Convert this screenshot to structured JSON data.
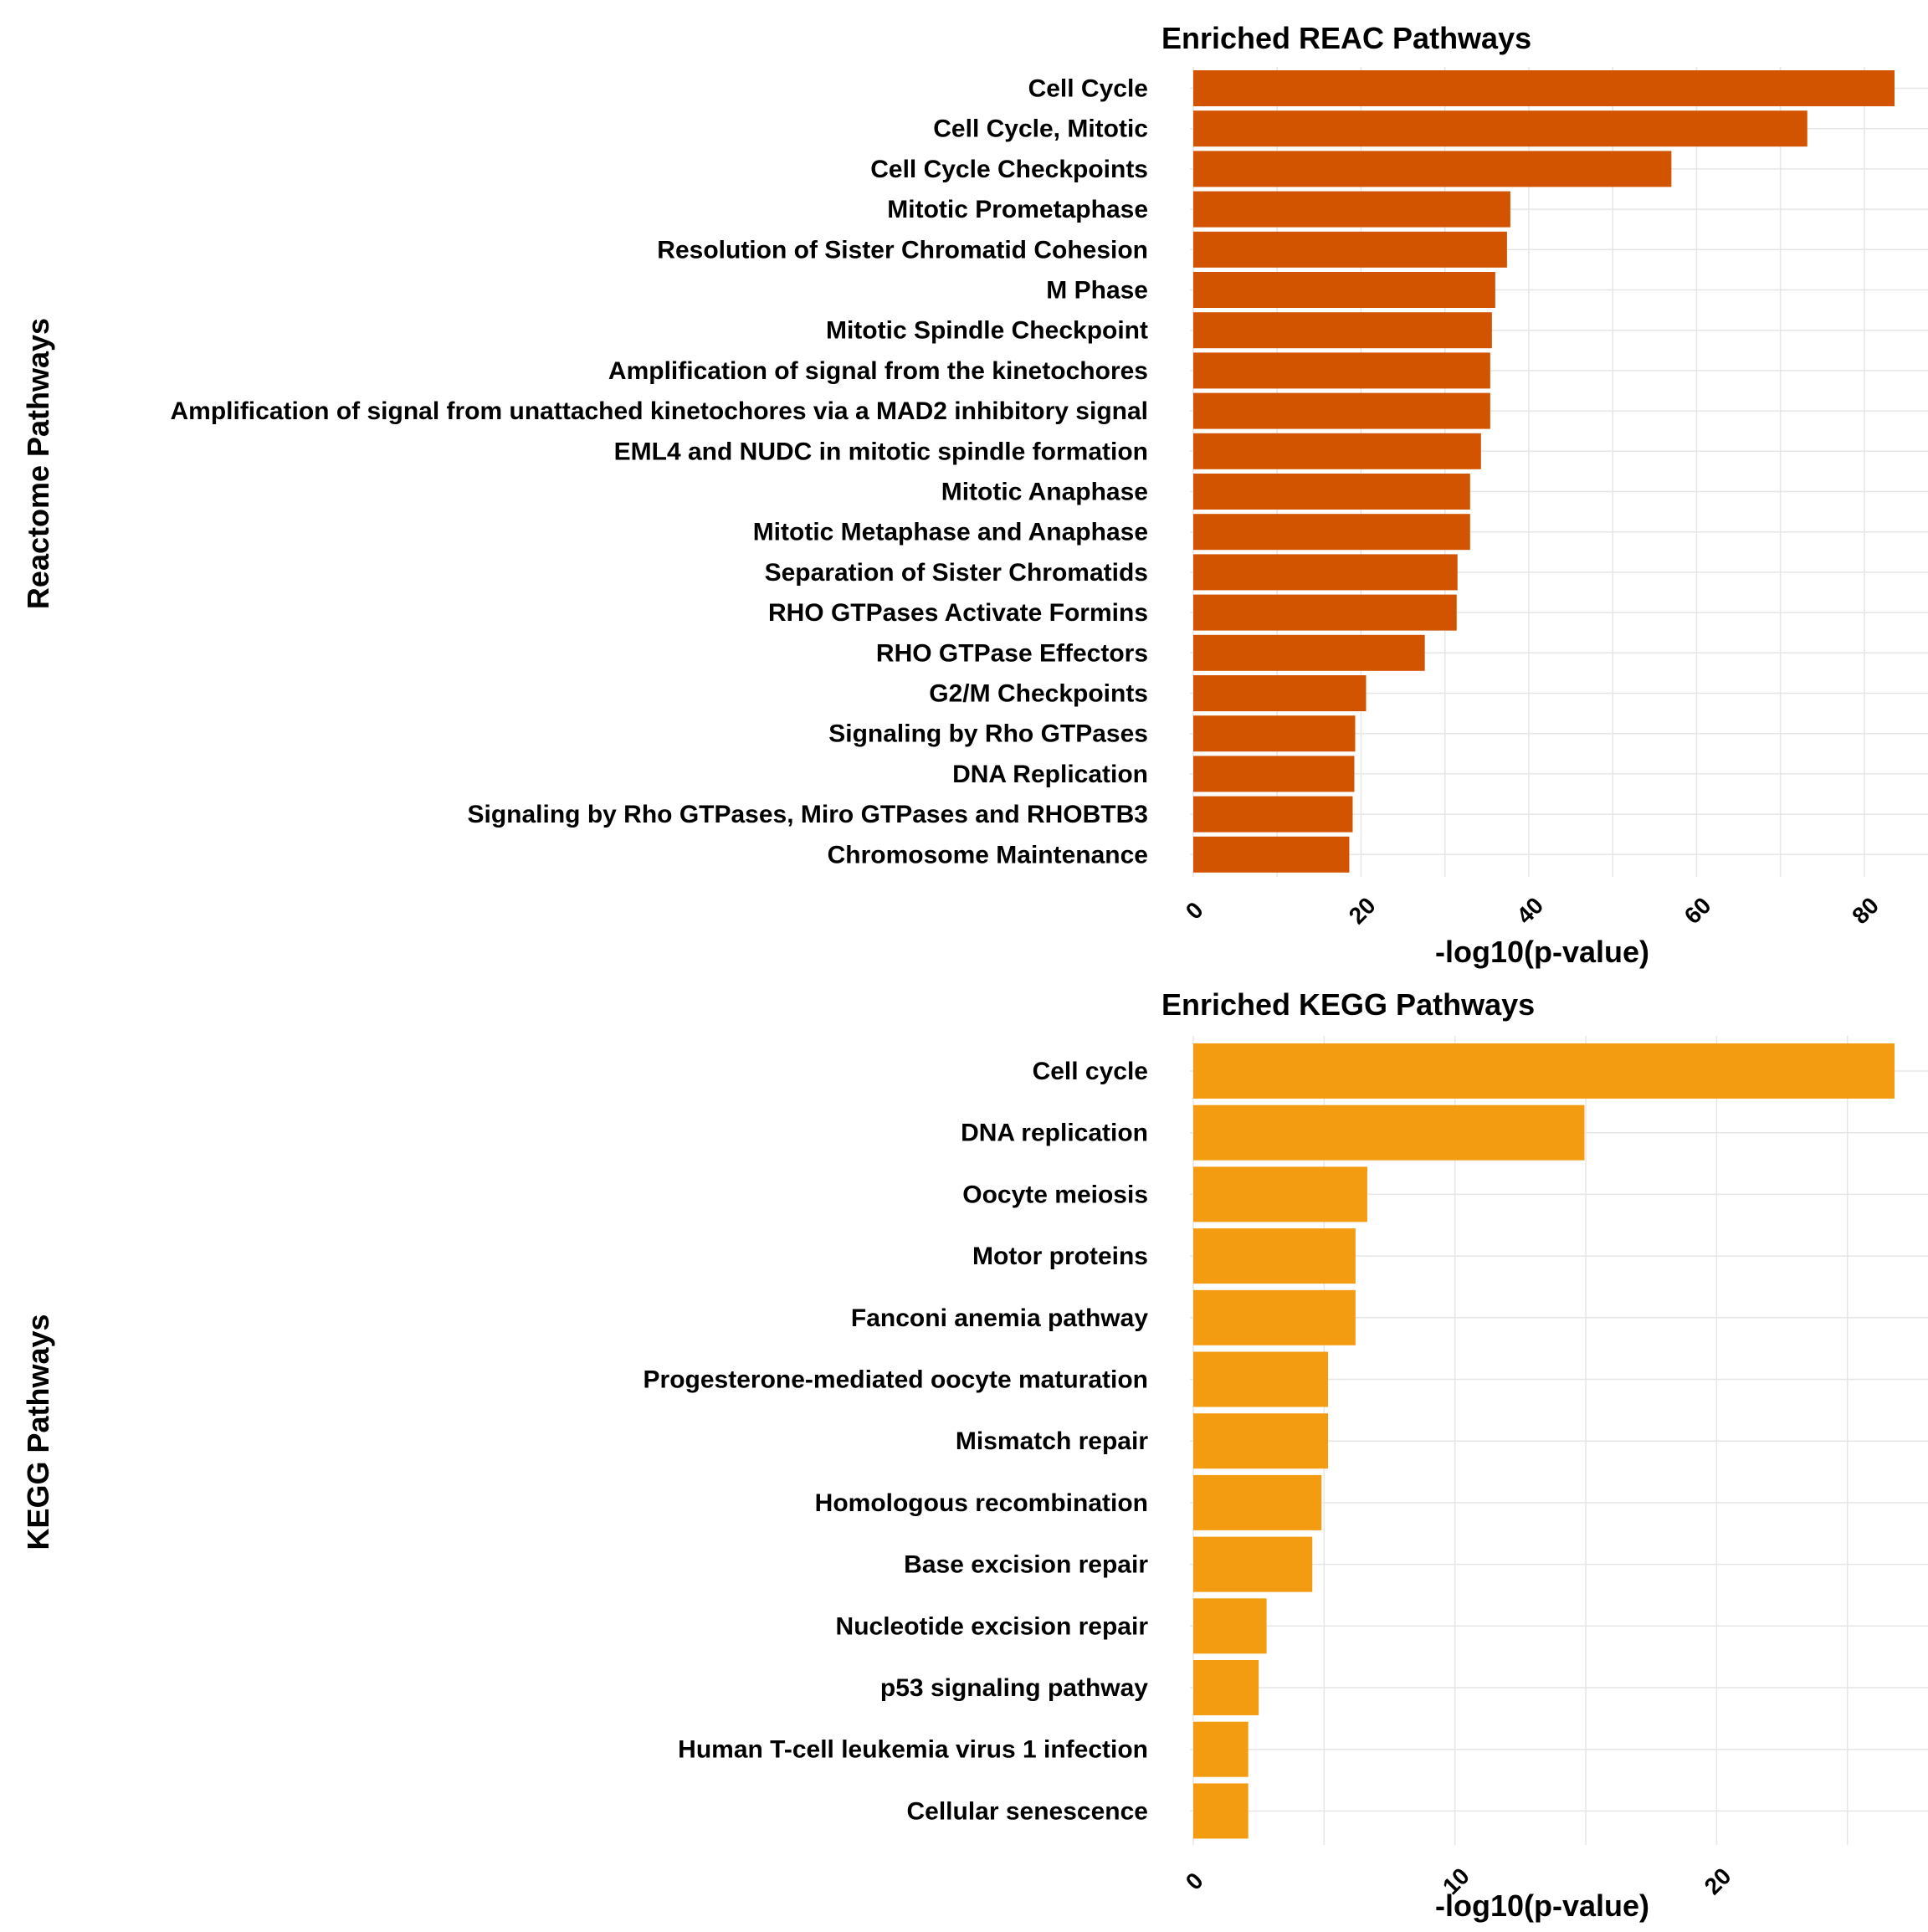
{
  "chart_data": [
    {
      "type": "bar",
      "orientation": "horizontal",
      "title": "Enriched REAC Pathways",
      "xlabel": "-log10(p-value)",
      "ylabel": "Reactome Pathways",
      "color": "#D35400",
      "xlim": [
        0,
        88
      ],
      "ticks": [
        0,
        20,
        40,
        60,
        80
      ],
      "tick_labels": [
        "0",
        "20",
        "40",
        "60",
        "80"
      ],
      "grid": true,
      "categories": [
        "Cell Cycle",
        "Cell Cycle, Mitotic",
        "Cell Cycle Checkpoints",
        "Mitotic Prometaphase",
        "Resolution of Sister Chromatid Cohesion",
        "M Phase",
        "Mitotic Spindle Checkpoint",
        "Amplification of signal from the kinetochores",
        "Amplification  of signal from unattached  kinetochores via a MAD2  inhibitory signal",
        "EML4 and NUDC in mitotic spindle formation",
        "Mitotic Anaphase",
        "Mitotic Metaphase and Anaphase",
        "Separation of Sister Chromatids",
        "RHO GTPases Activate Formins",
        "RHO GTPase Effectors",
        "G2/M Checkpoints",
        "Signaling by Rho GTPases",
        "DNA Replication",
        "Signaling by Rho GTPases, Miro GTPases and RHOBTB3",
        "Chromosome Maintenance"
      ],
      "values": [
        83.6,
        73.2,
        57.0,
        37.8,
        37.4,
        36.0,
        35.6,
        35.4,
        35.4,
        34.3,
        33.0,
        33.0,
        31.5,
        31.4,
        27.6,
        20.6,
        19.3,
        19.2,
        19.0,
        18.6
      ]
    },
    {
      "type": "bar",
      "orientation": "horizontal",
      "title": "Enriched KEGG Pathways",
      "xlabel": "-log10(p-value)",
      "ylabel": "KEGG Pathways",
      "color": "#F39C12",
      "xlim": [
        0,
        28.2
      ],
      "ticks": [
        0,
        10,
        20
      ],
      "tick_labels": [
        "0",
        "10",
        "20"
      ],
      "grid": true,
      "categories": [
        "Cell cycle",
        "DNA replication",
        "Oocyte meiosis",
        "Motor proteins",
        "Fanconi anemia pathway",
        "Progesterone-mediated oocyte maturation",
        "Mismatch repair",
        "Homologous recombination",
        "Base excision repair",
        "Nucleotide excision repair",
        "p53 signaling pathway",
        "Human T-cell leukemia virus 1 infection",
        "Cellular senescence"
      ],
      "values": [
        26.8,
        14.95,
        6.65,
        6.2,
        6.2,
        5.15,
        5.15,
        4.9,
        4.55,
        2.8,
        2.5,
        2.1,
        2.1
      ]
    }
  ]
}
